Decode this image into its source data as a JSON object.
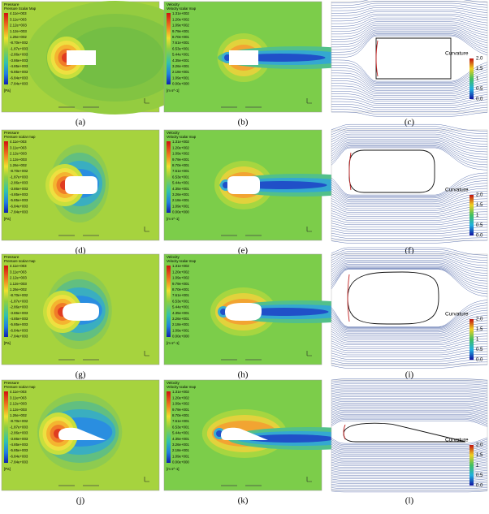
{
  "panel_labels": [
    "(a)",
    "(b)",
    "(c)",
    "(d)",
    "(e)",
    "(f)",
    "(g)",
    "(h)",
    "(i)",
    "(j)",
    "(k)",
    "(l)"
  ],
  "pressure_legend": {
    "title": "Pressure",
    "subtitles": [
      "Pressure Scalar Map",
      "Pressure scalar map",
      "Pressure scalar map",
      "Pressure scalar map"
    ],
    "values": [
      "4.11e+003",
      "3.11e+003",
      "2.12e+003",
      "1.12e+003",
      "1.26e+002",
      "-8.70e+002",
      "-1.87e+003",
      "-2.86e+003",
      "-3.86e+003",
      "-4.85e+003",
      "-5.85e+003",
      "-6.84e+003",
      "-7.84e+003"
    ],
    "unit": "[Pa]"
  },
  "velocity_legend": {
    "title": "Velocity",
    "subtitle": "Velocity scalar map",
    "values": [
      "1.31e+002",
      "1.20e+002",
      "1.09e+002",
      "9.79e+001",
      "8.70e+001",
      "7.61e+001",
      "6.53e+001",
      "5.44e+001",
      "4.35e+001",
      "3.26e+001",
      "2.18e+001",
      "1.09e+001",
      "0.00e+000"
    ],
    "unit": "[m s^-1]"
  },
  "curvature_legend": {
    "title": "Curvature",
    "ticks": [
      "2.0",
      "1.5",
      "1",
      "0.5",
      "0.0"
    ]
  }
}
